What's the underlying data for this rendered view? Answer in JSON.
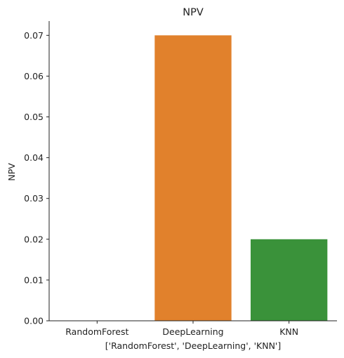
{
  "chart_data": {
    "type": "bar",
    "title": "NPV",
    "xlabel": "['RandomForest', 'DeepLearning', 'KNN']",
    "ylabel": "NPV",
    "categories": [
      "RandomForest",
      "DeepLearning",
      "KNN"
    ],
    "values": [
      0.0,
      0.07,
      0.02
    ],
    "colors": [
      "#3274a1",
      "#e1812c",
      "#3a923a"
    ],
    "ylim": [
      0,
      0.0735
    ],
    "yticks": [
      0.0,
      0.01,
      0.02,
      0.03,
      0.04,
      0.05,
      0.06,
      0.07
    ],
    "ytick_labels": [
      "0.00",
      "0.01",
      "0.02",
      "0.03",
      "0.04",
      "0.05",
      "0.06",
      "0.07"
    ],
    "grid": false,
    "legend": "none"
  }
}
